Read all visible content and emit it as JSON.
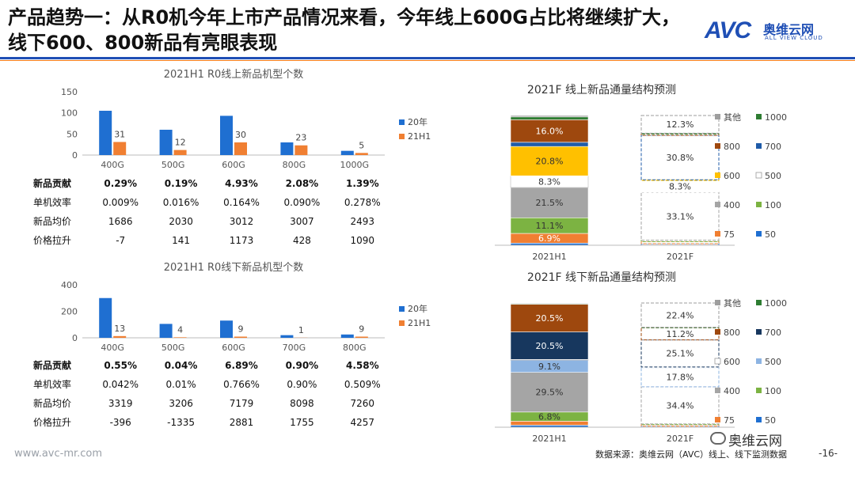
{
  "header": {
    "title": "产品趋势一：从R0机今年上市产品情况来看，今年线上600G占比将继续扩大，线下600、800新品有亮眼表现",
    "logo_text": "AVC",
    "logo_cn": "奥维云网",
    "logo_en": "ALL VIEW CLOUD"
  },
  "colors": {
    "blue": "#1f6fd1",
    "orange": "#f07f32",
    "accent": "#1f4fb5"
  },
  "chart_data": [
    {
      "type": "bar",
      "title": "2021H1 R0线上新品机型个数",
      "categories": [
        "400G",
        "500G",
        "600G",
        "800G",
        "1000G"
      ],
      "series": [
        {
          "name": "20年",
          "values": [
            105,
            60,
            93,
            30,
            10
          ],
          "labels": [
            "",
            "",
            "",
            "",
            ""
          ]
        },
        {
          "name": "21H1",
          "values": [
            31,
            12,
            30,
            23,
            5
          ],
          "labels": [
            "31",
            "12",
            "30",
            "23",
            "5"
          ]
        }
      ],
      "yticks": [
        0,
        50,
        100,
        150
      ],
      "ylim": [
        0,
        150
      ],
      "table": {
        "row_labels": [
          "新品贡献",
          "单机效率",
          "新品均价",
          "价格拉升"
        ],
        "rows": [
          [
            "0.29%",
            "0.19%",
            "4.93%",
            "2.08%",
            "1.39%"
          ],
          [
            "0.009%",
            "0.016%",
            "0.164%",
            "0.090%",
            "0.278%"
          ],
          [
            "1686",
            "2030",
            "3012",
            "3007",
            "2493"
          ],
          [
            "-7",
            "141",
            "1173",
            "428",
            "1090"
          ]
        ]
      }
    },
    {
      "type": "bar",
      "title": "2021H1 R0线下新品机型个数",
      "categories": [
        "400G",
        "500G",
        "600G",
        "700G",
        "800G"
      ],
      "series": [
        {
          "name": "20年",
          "values": [
            300,
            105,
            130,
            20,
            25
          ],
          "labels": [
            "",
            "",
            "",
            "",
            ""
          ]
        },
        {
          "name": "21H1",
          "values": [
            13,
            4,
            9,
            1,
            9
          ],
          "labels": [
            "13",
            "4",
            "9",
            "1",
            "9"
          ]
        }
      ],
      "yticks": [
        0,
        200,
        400
      ],
      "ylim": [
        0,
        400
      ],
      "table": {
        "row_labels": [
          "新品贡献",
          "单机效率",
          "新品均价",
          "价格拉升"
        ],
        "rows": [
          [
            "0.55%",
            "0.04%",
            "6.89%",
            "0.90%",
            "4.58%"
          ],
          [
            "0.042%",
            "0.01%",
            "0.766%",
            "0.90%",
            "0.509%"
          ],
          [
            "3319",
            "3206",
            "7179",
            "8098",
            "7260"
          ],
          [
            "-396",
            "-1335",
            "2881",
            "1755",
            "4257"
          ]
        ]
      }
    },
    {
      "type": "stacked-bar",
      "title": "2021F 线上新品通量结构预测",
      "categories": [
        "2021H1",
        "2021F"
      ],
      "segments_bottom_up": [
        "50",
        "75",
        "100",
        "400",
        "500",
        "600",
        "700",
        "800",
        "1000",
        "其他"
      ],
      "segment_colors": [
        "#1f6fd1",
        "#f07f32",
        "#7cb342",
        "#a5a5a5",
        "#ffffff",
        "#ffc000",
        "#1f5ba8",
        "#9e480e",
        "#2e7d32",
        "#9e9e9e"
      ],
      "columns": [
        {
          "name": "2021H1",
          "values": [
            1.5,
            6.9,
            11.1,
            21.5,
            8.3,
            20.8,
            3.0,
            16.0,
            2.0,
            1.0
          ],
          "labels": [
            "",
            "6.9%",
            "11.1%",
            "21.5%",
            "8.3%",
            "20.8%",
            "",
            "16.0%",
            "",
            ""
          ]
        },
        {
          "name": "2021F",
          "values": [
            1.0,
            1.5,
            1.0,
            33.1,
            8.3,
            0.5,
            30.8,
            1.0,
            0.5,
            12.3
          ],
          "labels": [
            "",
            "",
            "",
            "33.1%",
            "8.3%",
            "",
            "30.8%",
            "",
            "",
            "12.3%"
          ]
        }
      ],
      "legend": [
        "其他",
        "1000",
        "800",
        "700",
        "600",
        "500",
        "400",
        "100",
        "75",
        "50"
      ]
    },
    {
      "type": "stacked-bar",
      "title": "2021F 线下新品通量结构预测",
      "categories": [
        "2021H1",
        "2021F"
      ],
      "segments_bottom_up": [
        "50",
        "75",
        "100",
        "400",
        "500",
        "600",
        "700",
        "800",
        "1000",
        "其他"
      ],
      "segment_colors": [
        "#1f6fd1",
        "#f07f32",
        "#7cb342",
        "#a5a5a5",
        "#8db4e2",
        "#ffffff",
        "#17375e",
        "#9e480e",
        "#2e7d32",
        "#9e9e9e"
      ],
      "columns": [
        {
          "name": "2021H1",
          "values": [
            1.5,
            3.0,
            6.8,
            29.5,
            9.1,
            0.5,
            20.5,
            20.5,
            0.5,
            0.5
          ],
          "labels": [
            "",
            "",
            "6.8%",
            "29.5%",
            "9.1%",
            "",
            "20.5%",
            "20.5%",
            "",
            ""
          ]
        },
        {
          "name": "2021F",
          "values": [
            1.0,
            1.5,
            0.5,
            34.4,
            17.8,
            0.5,
            25.1,
            11.2,
            0.5,
            22.4
          ],
          "labels": [
            "",
            "",
            "",
            "34.4%",
            "17.8%",
            "",
            "25.1%",
            "11.2%",
            "",
            "22.4%"
          ]
        }
      ],
      "legend": [
        "其他",
        "1000",
        "800",
        "700",
        "600",
        "500",
        "400",
        "100",
        "75",
        "50"
      ]
    }
  ],
  "footer": {
    "url": "www.avc-mr.com",
    "source": "数据来源：奥维云网（AVC）线上、线下监测数据",
    "wechat": "奥维云网",
    "page": "-16-"
  }
}
